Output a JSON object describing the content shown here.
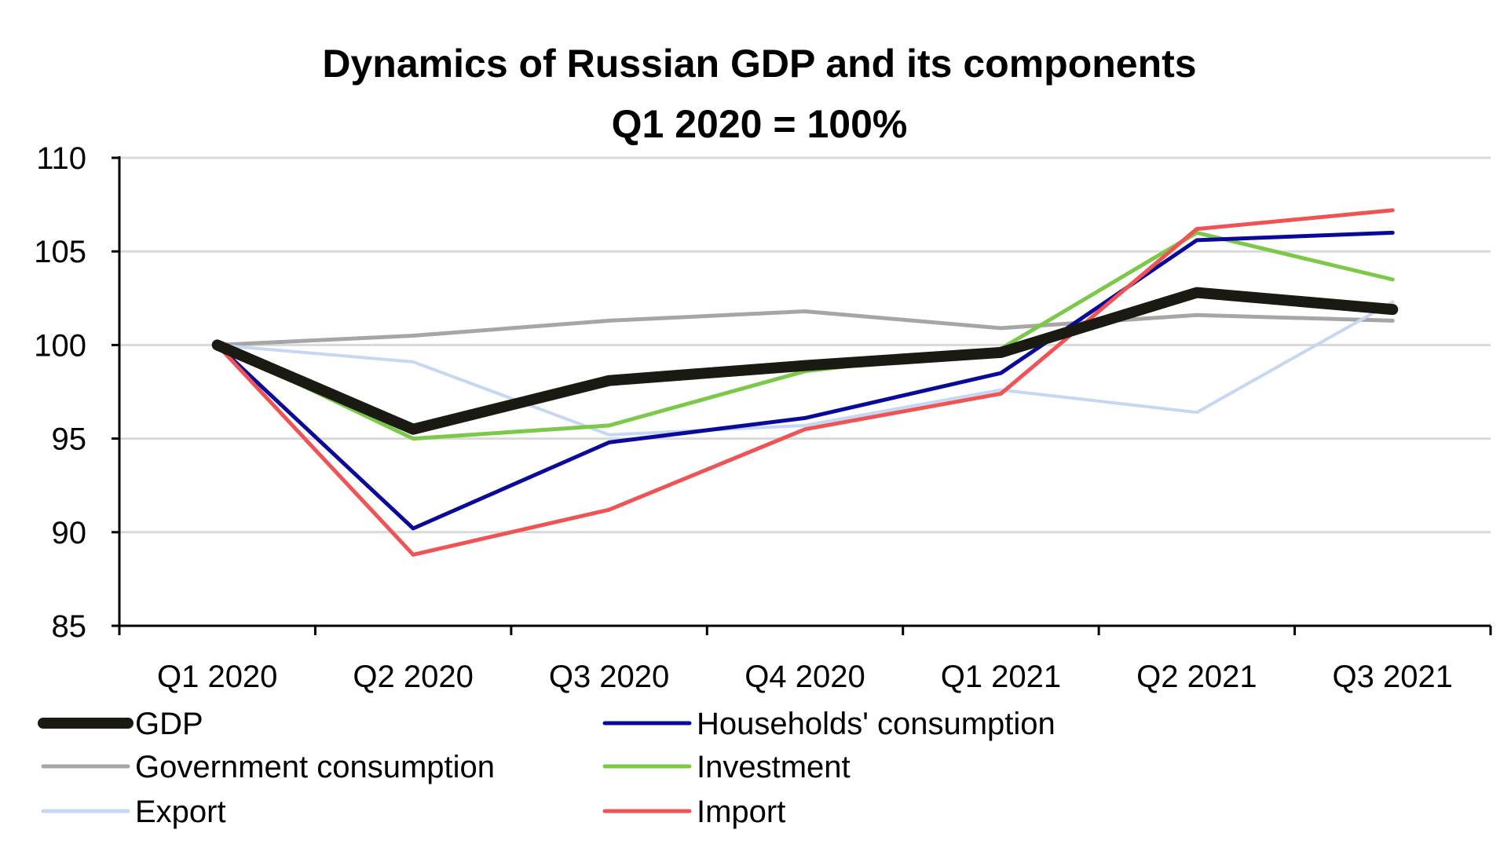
{
  "chart_data": {
    "type": "line",
    "title": "Dynamics of Russian GDP and its components",
    "subtitle": "Q1 2020 = 100%",
    "xlabel": "",
    "ylabel": "",
    "ylim": [
      85,
      110
    ],
    "yticks": [
      85,
      90,
      95,
      100,
      105,
      110
    ],
    "grid": true,
    "legend_position": "bottom",
    "categories": [
      "Q1 2020",
      "Q2 2020",
      "Q3 2020",
      "Q4 2020",
      "Q1 2021",
      "Q2 2021",
      "Q3 2021"
    ],
    "series": [
      {
        "name": "GDP",
        "color": "#1a1a12",
        "values": [
          100,
          95.5,
          98.1,
          98.9,
          99.6,
          102.8,
          101.9
        ]
      },
      {
        "name": "Households' consumption",
        "color": "#0a0a9a",
        "values": [
          100,
          90.2,
          94.8,
          96.1,
          98.5,
          105.6,
          106.0
        ]
      },
      {
        "name": "Government consumption",
        "color": "#a6a6a6",
        "values": [
          100,
          100.5,
          101.3,
          101.8,
          100.9,
          101.6,
          101.3
        ]
      },
      {
        "name": "Investment",
        "color": "#7cc94a",
        "values": [
          100,
          95.0,
          95.7,
          98.6,
          99.8,
          106.0,
          103.5
        ]
      },
      {
        "name": "Export",
        "color": "#c5d7f2",
        "values": [
          100,
          99.1,
          95.2,
          95.7,
          97.6,
          96.4,
          102.3
        ]
      },
      {
        "name": "Import",
        "color": "#ef5353",
        "values": [
          100,
          88.8,
          91.2,
          95.5,
          97.4,
          106.2,
          107.2
        ]
      }
    ]
  }
}
